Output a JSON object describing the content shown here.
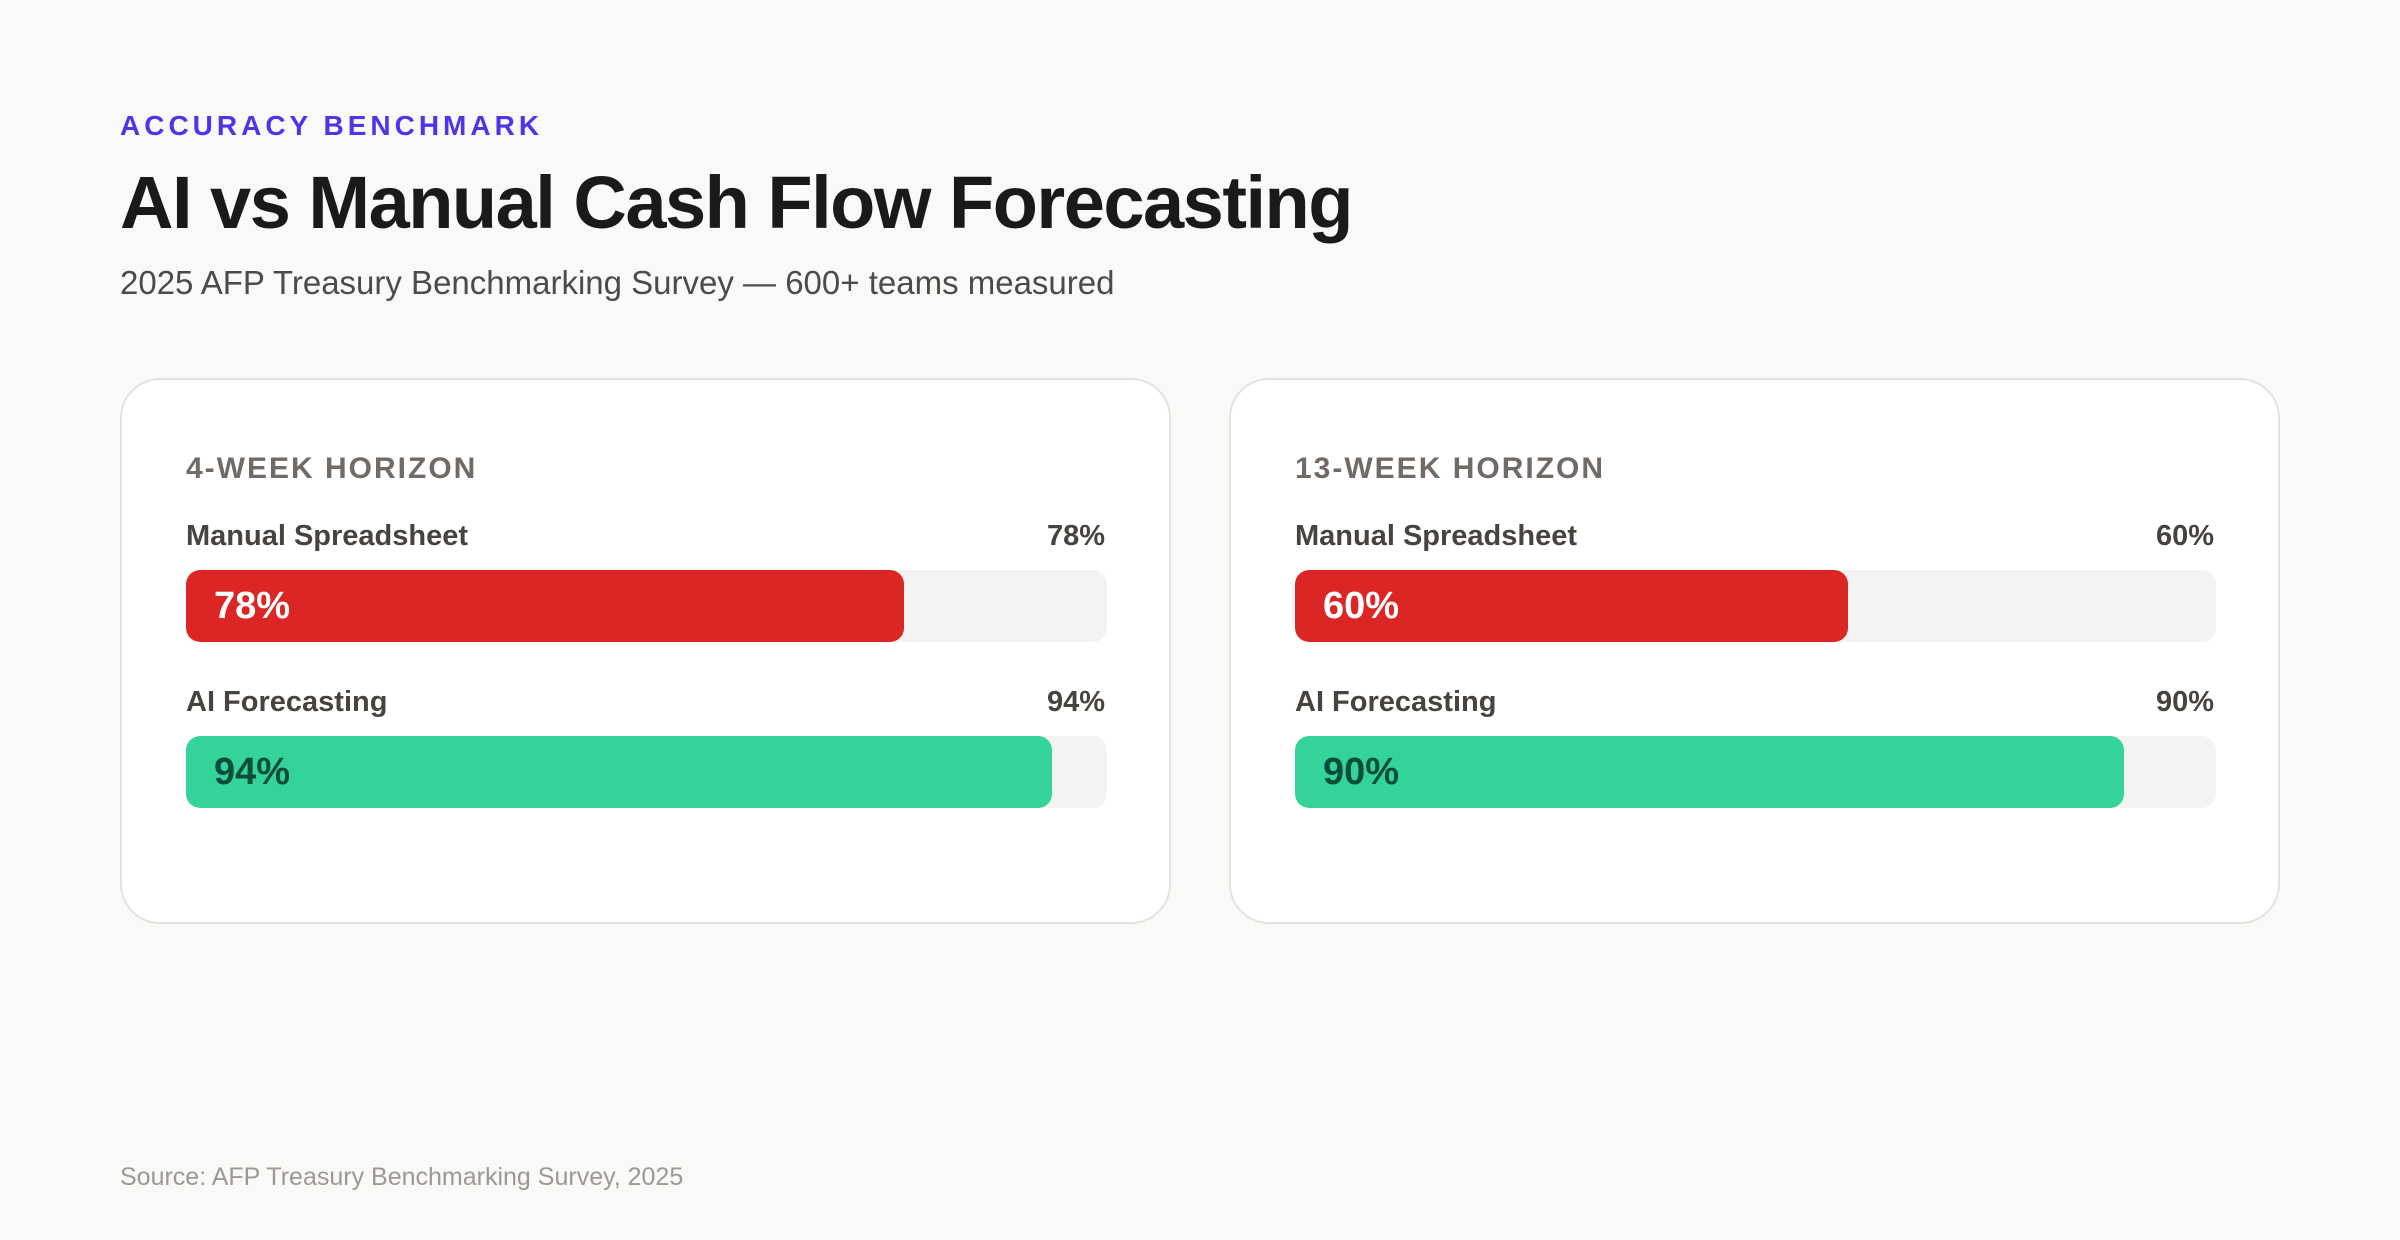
{
  "header": {
    "eyebrow": "ACCURACY BENCHMARK",
    "title": "AI vs Manual Cash Flow Forecasting",
    "subtitle": "2025 AFP Treasury Benchmarking Survey — 600+ teams measured"
  },
  "colors": {
    "accent": "#4f35e8",
    "manual": "#dc2626",
    "ai": "#34d399",
    "manual_label": "#ffffff",
    "ai_label": "#064e3b"
  },
  "chart_data": [
    {
      "type": "bar",
      "orientation": "horizontal",
      "title": "4-WEEK HORIZON",
      "categories": [
        "Manual Spreadsheet",
        "AI Forecasting"
      ],
      "values": [
        78,
        94
      ],
      "value_labels": [
        "78%",
        "94%"
      ],
      "unit": "%",
      "xlim": [
        0,
        100
      ]
    },
    {
      "type": "bar",
      "orientation": "horizontal",
      "title": "13-WEEK HORIZON",
      "categories": [
        "Manual Spreadsheet",
        "AI Forecasting"
      ],
      "values": [
        60,
        90
      ],
      "value_labels": [
        "60%",
        "90%"
      ],
      "unit": "%",
      "xlim": [
        0,
        100
      ]
    }
  ],
  "footer": {
    "source": "Source: AFP Treasury Benchmarking Survey, 2025"
  }
}
